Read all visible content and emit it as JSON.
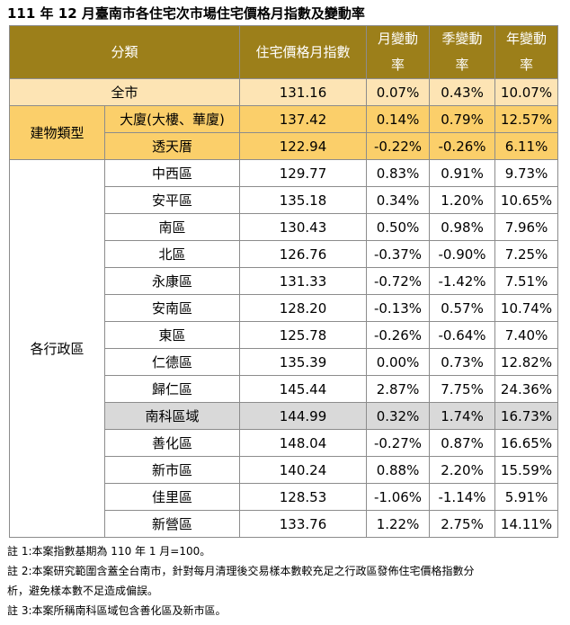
{
  "title": "111 年 12 月臺南市各住宅次市場住宅價格月指數及變動率",
  "headers": {
    "category": "分類",
    "index": "住宅價格月指數",
    "monthly": [
      "月變動",
      "率"
    ],
    "quarterly": [
      "季變動",
      "率"
    ],
    "yearly": [
      "年變動",
      "率"
    ]
  },
  "city": {
    "name": "全市",
    "index": "131.16",
    "monthly": "0.07%",
    "quarterly": "0.43%",
    "yearly": "10.07%"
  },
  "building_type": {
    "group": "建物類型",
    "rows": [
      {
        "name": "大廈(大樓、華廈)",
        "index": "137.42",
        "monthly": "0.14%",
        "quarterly": "0.79%",
        "yearly": "12.57%"
      },
      {
        "name": "透天厝",
        "index": "122.94",
        "monthly": "-0.22%",
        "quarterly": "-0.26%",
        "yearly": "6.11%"
      }
    ]
  },
  "districts": {
    "group": "各行政區",
    "rows": [
      {
        "name": "中西區",
        "index": "129.77",
        "monthly": "0.83%",
        "quarterly": "0.91%",
        "yearly": "9.73%"
      },
      {
        "name": "安平區",
        "index": "135.18",
        "monthly": "0.34%",
        "quarterly": "1.20%",
        "yearly": "10.65%"
      },
      {
        "name": "南區",
        "index": "130.43",
        "monthly": "0.50%",
        "quarterly": "0.98%",
        "yearly": "7.96%"
      },
      {
        "name": "北區",
        "index": "126.76",
        "monthly": "-0.37%",
        "quarterly": "-0.90%",
        "yearly": "7.25%"
      },
      {
        "name": "永康區",
        "index": "131.33",
        "monthly": "-0.72%",
        "quarterly": "-1.42%",
        "yearly": "7.51%"
      },
      {
        "name": "安南區",
        "index": "128.20",
        "monthly": "-0.13%",
        "quarterly": "0.57%",
        "yearly": "10.74%"
      },
      {
        "name": "東區",
        "index": "125.78",
        "monthly": "-0.26%",
        "quarterly": "-0.64%",
        "yearly": "7.40%"
      },
      {
        "name": "仁德區",
        "index": "135.39",
        "monthly": "0.00%",
        "quarterly": "0.73%",
        "yearly": "12.82%"
      },
      {
        "name": "歸仁區",
        "index": "145.44",
        "monthly": "2.87%",
        "quarterly": "7.75%",
        "yearly": "24.36%"
      },
      {
        "name": "南科區域",
        "index": "144.99",
        "monthly": "0.32%",
        "quarterly": "1.74%",
        "yearly": "16.73%"
      },
      {
        "name": "善化區",
        "index": "148.04",
        "monthly": "-0.27%",
        "quarterly": "0.87%",
        "yearly": "16.65%"
      },
      {
        "name": "新市區",
        "index": "140.24",
        "monthly": "0.88%",
        "quarterly": "2.20%",
        "yearly": "15.59%"
      },
      {
        "name": "佳里區",
        "index": "128.53",
        "monthly": "-1.06%",
        "quarterly": "-1.14%",
        "yearly": "5.91%"
      },
      {
        "name": "新營區",
        "index": "133.76",
        "monthly": "1.22%",
        "quarterly": "2.75%",
        "yearly": "14.11%"
      }
    ]
  },
  "notes": [
    "註 1:本案指數基期為 110 年 1 月=100。",
    "註 2:本案研究範圍含蓋全台南市，針對每月清理後交易樣本數較充足之行政區發佈住宅價格指數分",
    "析，避免樣本數不足造成偏誤。",
    "註 3:本案所稱南科區域包含善化區及新市區。"
  ],
  "colors": {
    "header_bg": "#9c7f1a",
    "city_row_bg": "#fde4b4",
    "building_type_bg": "#fbcf6a",
    "highlight_row_bg": "#d9d9d9"
  }
}
